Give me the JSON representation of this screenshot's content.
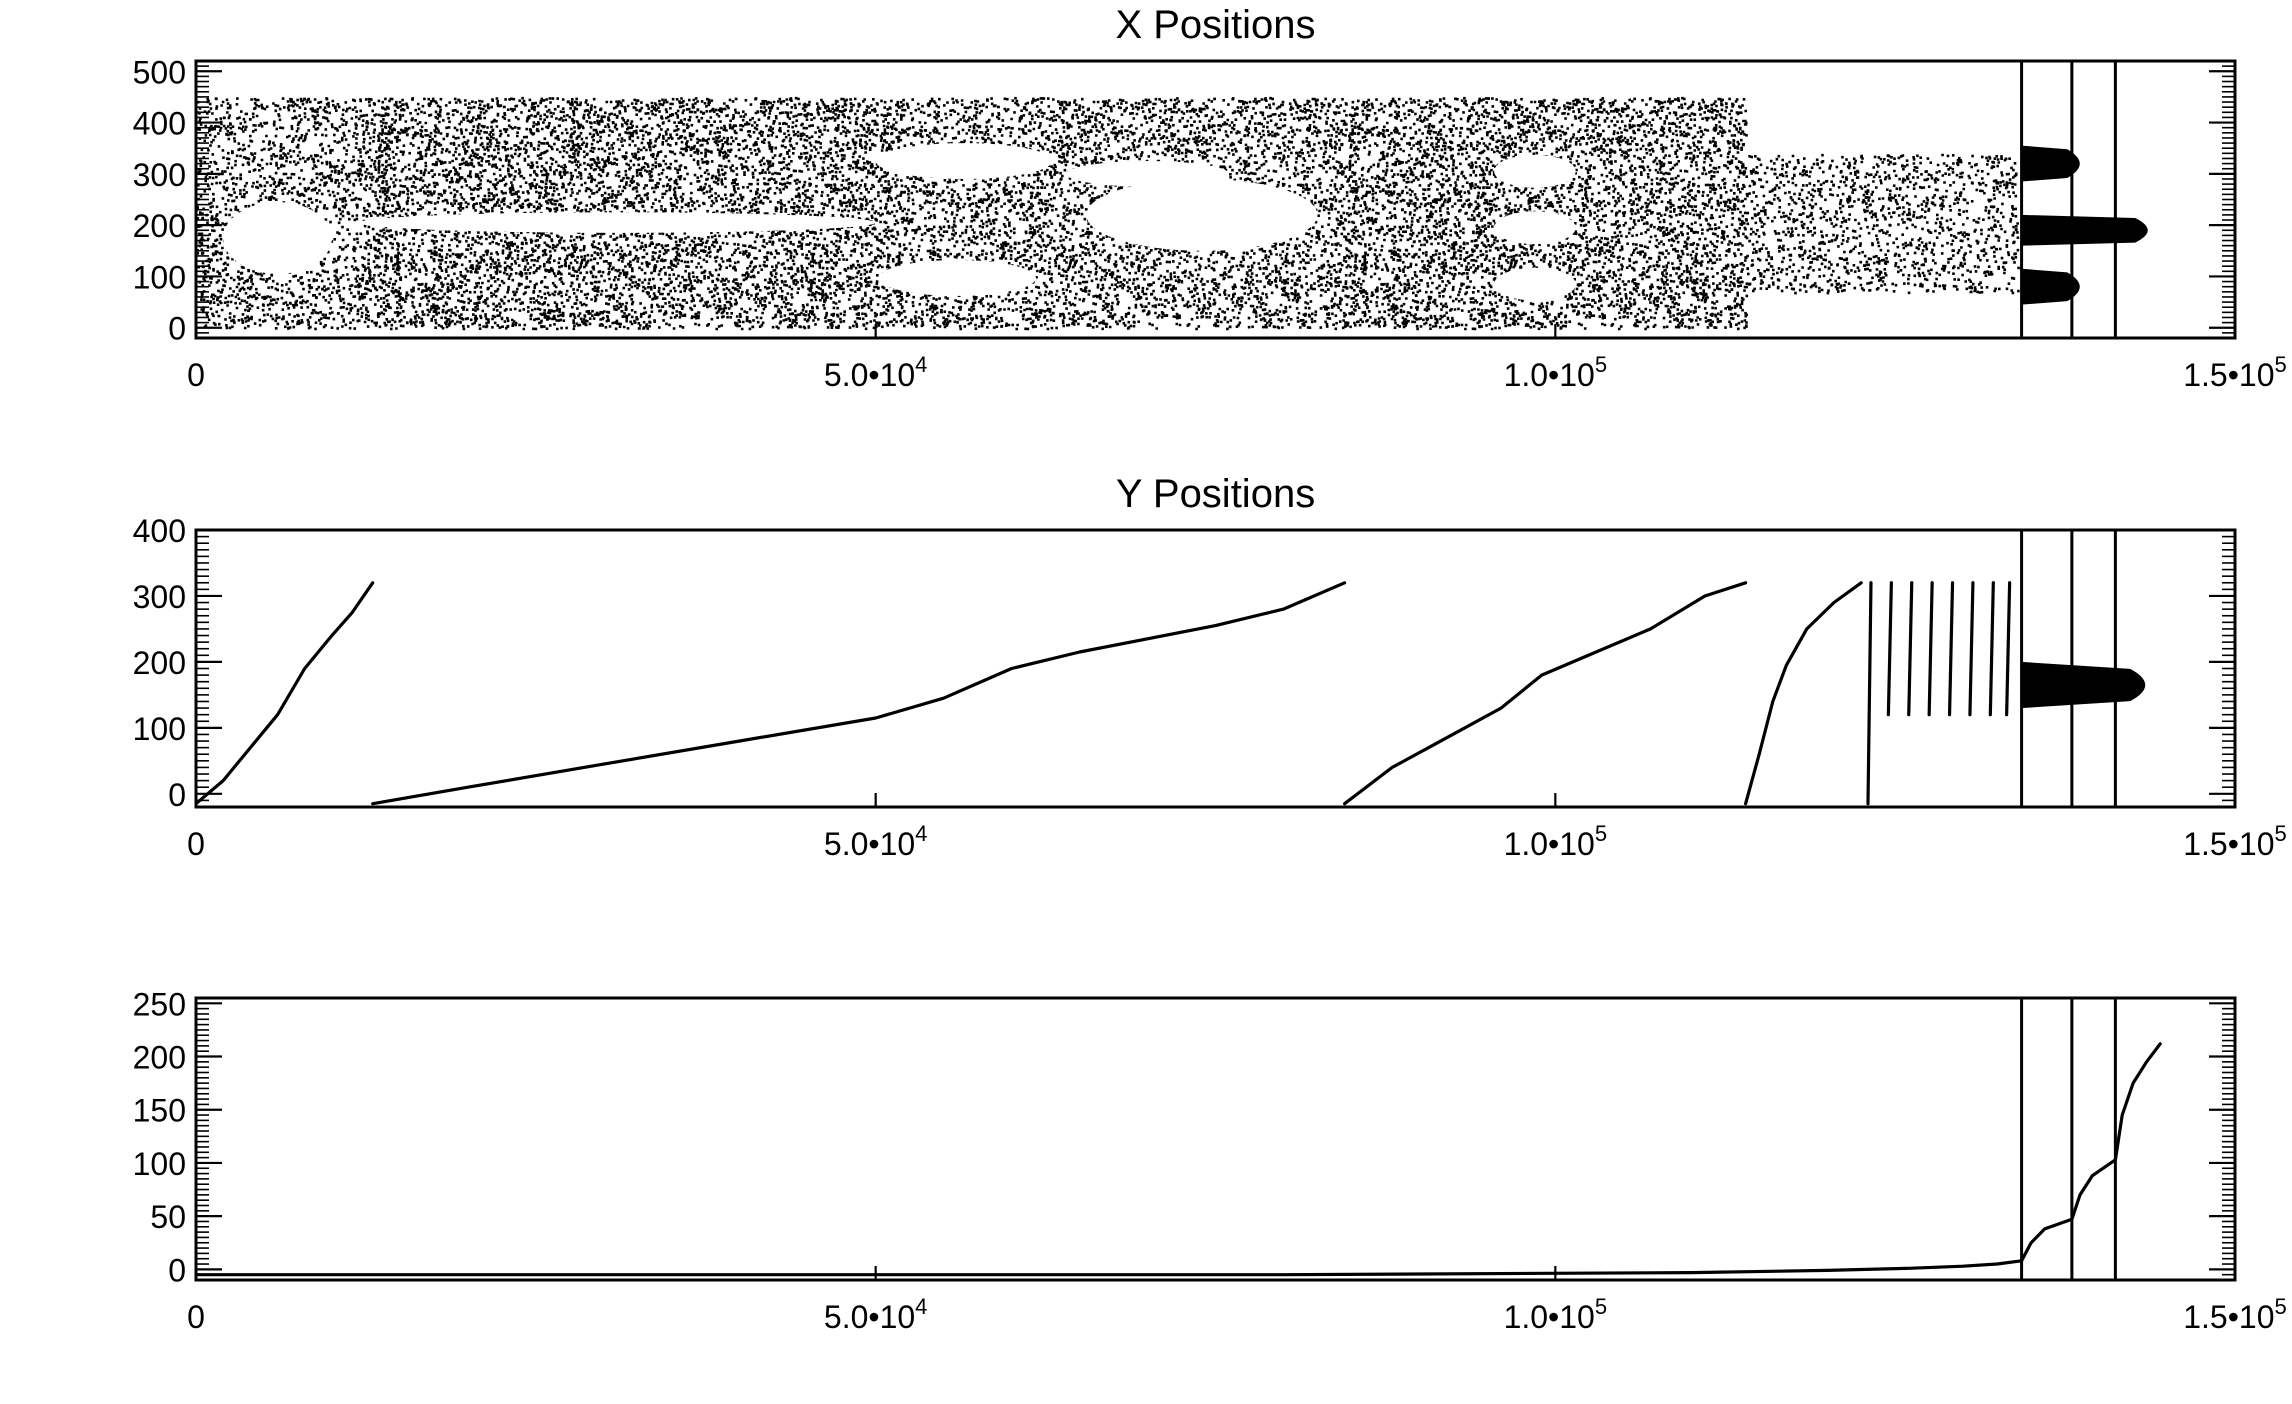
{
  "chart_data": [
    {
      "type": "scatter",
      "title": "X Positions",
      "xlabel": "",
      "ylabel": "",
      "xlim": [
        0,
        150000
      ],
      "ylim": [
        -20,
        520
      ],
      "x_ticks": [
        0,
        50000,
        100000,
        150000
      ],
      "x_tick_labels": [
        {
          "mant": "0",
          "exp": ""
        },
        {
          "mant": "5.0•10",
          "exp": "4"
        },
        {
          "mant": "1.0•10",
          "exp": "5"
        },
        {
          "mant": "1.5•10",
          "exp": "5"
        }
      ],
      "y_ticks": [
        0,
        100,
        200,
        300,
        400,
        500
      ],
      "y_tick_labels": [
        "0",
        "100",
        "200",
        "300",
        "400",
        "500"
      ],
      "vertical_lines_x": [
        134300,
        138000,
        141200
      ],
      "segments": [
        {
          "x_range": [
            0,
            13000
          ],
          "y_range": [
            0,
            450
          ],
          "density": 0.35,
          "holes": [
            {
              "x": 6000,
              "y": 175,
              "rx": 4000,
              "ry": 70
            }
          ]
        },
        {
          "x_range": [
            13000,
            50000
          ],
          "y_range": [
            0,
            450
          ],
          "density": 0.85,
          "holes": [
            {
              "x": 31000,
              "y": 205,
              "rx": 19000,
              "ry": 20
            }
          ]
        },
        {
          "x_range": [
            50000,
            84500
          ],
          "y_range": [
            0,
            450
          ],
          "density": 0.8,
          "holes": [
            {
              "x": 56000,
              "y": 97,
              "rx": 5800,
              "ry": 35
            },
            {
              "x": 56500,
              "y": 325,
              "rx": 6500,
              "ry": 35
            },
            {
              "x": 74000,
              "y": 220,
              "rx": 8500,
              "ry": 70
            },
            {
              "x": 70000,
              "y": 300,
              "rx": 6000,
              "ry": 25
            }
          ]
        },
        {
          "x_range": [
            84500,
            114000
          ],
          "y_range": [
            0,
            450
          ],
          "density": 0.45,
          "holes": [
            {
              "x": 98500,
              "y": 305,
              "rx": 3000,
              "ry": 32
            },
            {
              "x": 98500,
              "y": 195,
              "rx": 3000,
              "ry": 32
            },
            {
              "x": 98500,
              "y": 85,
              "rx": 3000,
              "ry": 32
            }
          ]
        },
        {
          "x_range": [
            114000,
            134000
          ],
          "y_range": [
            70,
            340
          ],
          "density": 0.3,
          "holes": []
        }
      ],
      "tail_clusters": [
        {
          "x_range": [
            134300,
            139500
          ],
          "y_center": 320,
          "y_halfwidth": 35
        },
        {
          "x_range": [
            134300,
            144500
          ],
          "y_center": 190,
          "y_halfwidth": 30
        },
        {
          "x_range": [
            134300,
            139500
          ],
          "y_center": 80,
          "y_halfwidth": 35
        }
      ]
    },
    {
      "type": "line",
      "title": "Y Positions",
      "xlabel": "",
      "ylabel": "",
      "xlim": [
        0,
        150000
      ],
      "ylim": [
        -20,
        400
      ],
      "x_ticks": [
        0,
        50000,
        100000,
        150000
      ],
      "x_tick_labels": [
        {
          "mant": "0",
          "exp": ""
        },
        {
          "mant": "5.0•10",
          "exp": "4"
        },
        {
          "mant": "1.0•10",
          "exp": "5"
        },
        {
          "mant": "1.5•10",
          "exp": "5"
        }
      ],
      "y_ticks": [
        0,
        100,
        200,
        300,
        400
      ],
      "y_tick_labels": [
        "0",
        "100",
        "200",
        "300",
        "400"
      ],
      "vertical_lines_x": [
        134300,
        138000,
        141200
      ],
      "series": [
        {
          "x": [
            0,
            2000,
            4000,
            6000,
            8000,
            10000,
            11500,
            13000
          ],
          "y": [
            -15,
            20,
            70,
            120,
            190,
            240,
            275,
            320
          ]
        },
        {
          "x": [
            13000,
            20000,
            30000,
            40000,
            50000,
            55000,
            60000,
            65000,
            70000,
            75000,
            80000,
            84500
          ],
          "y": [
            -15,
            10,
            45,
            80,
            115,
            145,
            190,
            215,
            235,
            255,
            280,
            320
          ]
        },
        {
          "x": [
            84500,
            88000,
            92000,
            96000,
            99000,
            103000,
            107000,
            111000,
            114000
          ],
          "y": [
            -15,
            40,
            85,
            130,
            180,
            215,
            250,
            300,
            320
          ]
        },
        {
          "x": [
            114000,
            115000,
            116000,
            117000,
            118500,
            120500,
            122500
          ],
          "y": [
            -15,
            60,
            140,
            195,
            250,
            290,
            320
          ]
        }
      ],
      "spikes": [
        {
          "x": 123000,
          "y_range": [
            -15,
            320
          ]
        },
        {
          "x": 124500,
          "y_range": [
            120,
            320
          ]
        },
        {
          "x": 126000,
          "y_range": [
            120,
            320
          ]
        },
        {
          "x": 127500,
          "y_range": [
            120,
            320
          ]
        },
        {
          "x": 129000,
          "y_range": [
            120,
            320
          ]
        },
        {
          "x": 130500,
          "y_range": [
            120,
            320
          ]
        },
        {
          "x": 132000,
          "y_range": [
            120,
            320
          ]
        },
        {
          "x": 133200,
          "y_range": [
            120,
            320
          ]
        }
      ],
      "tail_band": {
        "x_range": [
          134300,
          144500
        ],
        "y_center": 165,
        "y_halfwidth": 35
      }
    },
    {
      "type": "line",
      "title": "",
      "xlabel": "",
      "ylabel": "",
      "xlim": [
        0,
        150000
      ],
      "ylim": [
        -10,
        255
      ],
      "x_ticks": [
        0,
        50000,
        100000,
        150000
      ],
      "x_tick_labels": [
        {
          "mant": "0",
          "exp": ""
        },
        {
          "mant": "5.0•10",
          "exp": "4"
        },
        {
          "mant": "1.0•10",
          "exp": "5"
        },
        {
          "mant": "1.5•10",
          "exp": "5"
        }
      ],
      "y_ticks": [
        0,
        50,
        100,
        150,
        200,
        250
      ],
      "y_tick_labels": [
        "0",
        "50",
        "100",
        "150",
        "200",
        "250"
      ],
      "vertical_lines_x": [
        134300,
        138000,
        141200
      ],
      "series": [
        {
          "x": [
            0,
            80000,
            110000,
            120000,
            126000,
            130000,
            132500,
            134300,
            135000,
            136000,
            138000,
            138600,
            139500,
            141200,
            141700,
            142500,
            143500,
            144500
          ],
          "y": [
            -5,
            -5,
            -3,
            -1,
            1,
            3,
            5,
            8,
            25,
            38,
            47,
            70,
            88,
            103,
            145,
            175,
            195,
            212
          ]
        }
      ]
    }
  ]
}
